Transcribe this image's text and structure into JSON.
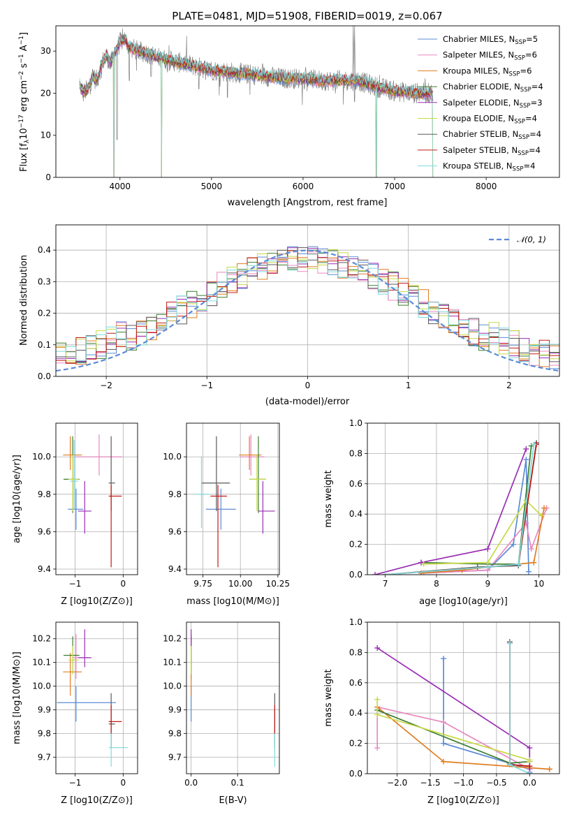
{
  "figure": {
    "title": "PLATE=0481, MJD=51908, FIBERID=0019, z=0.067"
  },
  "colors": {
    "series": [
      "#5b8bd6",
      "#e889c0",
      "#e07c1f",
      "#3c7d2f",
      "#9a2fb3",
      "#c8d948",
      "#5a5a5a",
      "#c21a15",
      "#7fd9de"
    ],
    "data": "#808080",
    "grid": "#b0b0b0",
    "gaussian": "#5b8bd6"
  },
  "chart_data": [
    {
      "id": "spectrum",
      "type": "line",
      "xlabel": "wavelength [Angstrom, rest frame]",
      "ylabel": "Flux [f_λ10^-17 erg cm^-2 s^-1 A^-1]",
      "xlim": [
        3300,
        8800
      ],
      "ylim": [
        0,
        36
      ],
      "xticks": [
        4000,
        5000,
        6000,
        7000,
        8000
      ],
      "yticks": [
        0,
        10,
        20,
        30
      ],
      "grid": false,
      "legend_position": "top-right",
      "legend": [
        "Chabrier MILES, N_SSP=5",
        "Salpeter MILES, N_SSP=6",
        "Kroupa MILES, N_SSP=6",
        "Chabrier ELODIE, N_SSP=4",
        "Salpeter ELODIE, N_SSP=3",
        "Kroupa ELODIE, N_SSP=4",
        "Chabrier STELIB, N_SSP=4",
        "Salpeter STELIB, N_SSP=4",
        "Kroupa STELIB, N_SSP=4"
      ],
      "model_x": [
        3560,
        3600,
        3650,
        3700,
        3750,
        3800,
        3850,
        3900,
        3950,
        4000,
        4050,
        4100,
        4200,
        4300,
        4400,
        4500,
        4600,
        4800,
        5000,
        5200,
        5400,
        5600,
        5800,
        6000,
        6200,
        6400,
        6600,
        6800,
        7000,
        7200,
        7400,
        7420
      ],
      "model_y": [
        22,
        20,
        21,
        24,
        23,
        27,
        29,
        27,
        30,
        32,
        33,
        31,
        30,
        29.5,
        28.5,
        28,
        27.5,
        26.5,
        25.5,
        25,
        24.5,
        24,
        23.5,
        23.5,
        23,
        23,
        23,
        21.5,
        20.5,
        20,
        20,
        19
      ],
      "absorption_lines": [
        [
          3933,
          0
        ],
        [
          3968,
          9
        ],
        [
          4102,
          23
        ],
        [
          4340,
          24
        ],
        [
          4455,
          0
        ],
        [
          4861,
          21
        ],
        [
          5175,
          19
        ],
        [
          6563,
          18
        ],
        [
          6800,
          0
        ],
        [
          7420,
          0
        ]
      ]
    },
    {
      "id": "residuals",
      "type": "bar",
      "xlabel": "(data-model)/error",
      "ylabel": "Normed distribution",
      "xlim": [
        -2.5,
        2.5
      ],
      "ylim": [
        0,
        0.48
      ],
      "xticks": [
        -2,
        -1,
        0,
        1,
        2
      ],
      "yticks": [
        0.0,
        0.1,
        0.2,
        0.3,
        0.4
      ],
      "grid": true,
      "legend_position": "top-right",
      "legend": [
        "𝒩(0, 1)"
      ],
      "bin_width": 0.1,
      "x_start": -2.5,
      "gaussian": {
        "mean": 0,
        "sigma": 1
      }
    },
    {
      "id": "age-vs-Z",
      "type": "scatter",
      "xlabel": "Z [log10(Z/Z⊙)]",
      "ylabel": "age  [log10(age/yr)]",
      "xlim": [
        -1.4,
        0.3
      ],
      "ylim": [
        9.37,
        10.18
      ],
      "xticks": [
        -1,
        0
      ],
      "yticks": [
        9.4,
        9.6,
        9.8,
        10.0
      ],
      "grid": true,
      "points": [
        {
          "x": -0.98,
          "xerr": [
            0.17,
            0.15
          ],
          "y": 9.72,
          "yerr": [
            0.11,
            0.11
          ]
        },
        {
          "x": -0.5,
          "xerr": [
            0.49,
            0.48
          ],
          "y": 10.0,
          "yerr": [
            0.1,
            0.12
          ]
        },
        {
          "x": -1.1,
          "xerr": [
            0.15,
            0.24
          ],
          "y": 10.01,
          "yerr": [
            0.08,
            0.1
          ]
        },
        {
          "x": -1.05,
          "xerr": [
            0.19,
            0.14
          ],
          "y": 9.88,
          "yerr": [
            0.18,
            0.23
          ]
        },
        {
          "x": -0.8,
          "xerr": [
            0.14,
            0.14
          ],
          "y": 9.71,
          "yerr": [
            0.12,
            0.16
          ]
        },
        {
          "x": -1.05,
          "xerr": [
            0.09,
            0.12
          ],
          "y": 9.88,
          "yerr": [
            0.17,
            0.13
          ]
        },
        {
          "x": -0.25,
          "xerr": [
            0.05,
            0.08
          ],
          "y": 9.86,
          "yerr": [
            0.15,
            0.25
          ]
        },
        {
          "x": -0.25,
          "xerr": [
            0.05,
            0.22
          ],
          "y": 9.79,
          "yerr": [
            0.38,
            0.06
          ]
        },
        {
          "x": -1.02,
          "xerr": [
            0.08,
            0.08
          ],
          "y": 9.87,
          "yerr": [
            0.15,
            0.22
          ]
        }
      ]
    },
    {
      "id": "age-vs-mass",
      "type": "scatter",
      "xlabel": "mass [log10(M/M⊙)]",
      "ylabel": "",
      "xlim": [
        9.64,
        10.26
      ],
      "ylim": [
        9.37,
        10.18
      ],
      "xticks": [
        9.75,
        10.0,
        10.25
      ],
      "yticks": [
        9.4,
        9.6,
        9.8,
        10.0
      ],
      "grid": true,
      "points": [
        {
          "x": 9.87,
          "xerr": [
            0.1,
            0.1
          ],
          "y": 9.72,
          "yerr": [
            0.11,
            0.11
          ]
        },
        {
          "x": 10.07,
          "xerr": [
            0.07,
            0.09
          ],
          "y": 10.0,
          "yerr": [
            0.1,
            0.12
          ]
        },
        {
          "x": 10.06,
          "xerr": [
            0.07,
            0.08
          ],
          "y": 10.01,
          "yerr": [
            0.08,
            0.1
          ]
        },
        {
          "x": 10.12,
          "xerr": [
            0.06,
            0.05
          ],
          "y": 9.88,
          "yerr": [
            0.18,
            0.23
          ]
        },
        {
          "x": 10.15,
          "xerr": [
            0.03,
            0.08
          ],
          "y": 9.71,
          "yerr": [
            0.12,
            0.16
          ]
        },
        {
          "x": 10.11,
          "xerr": [
            0.05,
            0.06
          ],
          "y": 9.88,
          "yerr": [
            0.17,
            0.13
          ]
        },
        {
          "x": 9.84,
          "xerr": [
            0.1,
            0.09
          ],
          "y": 9.86,
          "yerr": [
            0.15,
            0.25
          ]
        },
        {
          "x": 9.85,
          "xerr": [
            0.05,
            0.06
          ],
          "y": 9.79,
          "yerr": [
            0.38,
            0.06
          ]
        },
        {
          "x": 9.74,
          "xerr": [
            0.04,
            0.05
          ],
          "y": 9.8,
          "yerr": [
            0.18,
            0.2
          ]
        }
      ]
    },
    {
      "id": "weight-vs-age",
      "type": "line",
      "xlabel": "age  [log10(age/yr)]",
      "ylabel": "mass weight",
      "xlim": [
        6.65,
        10.4
      ],
      "ylim": [
        0,
        1.0
      ],
      "xticks": [
        7,
        8,
        9,
        10
      ],
      "yticks": [
        0.0,
        0.2,
        0.4,
        0.6,
        0.8,
        1.0
      ],
      "grid": true,
      "series": [
        {
          "x": [
            7.7,
            9.0,
            9.5,
            9.75,
            9.8
          ],
          "y": [
            0.01,
            0.03,
            0.2,
            0.76,
            0.02
          ]
        },
        {
          "x": [
            7.75,
            9.0,
            9.75,
            9.85,
            10.15
          ],
          "y": [
            0.01,
            0.03,
            0.34,
            0.17,
            0.44
          ]
        },
        {
          "x": [
            7.7,
            8.5,
            9.0,
            9.9,
            10.1
          ],
          "y": [
            0.01,
            0.03,
            0.05,
            0.08,
            0.44
          ]
        },
        {
          "x": [
            7.7,
            9.0,
            9.6,
            9.85
          ],
          "y": [
            0.08,
            0.07,
            0.07,
            0.85
          ]
        },
        {
          "x": [
            6.8,
            7.7,
            9.0,
            9.75
          ],
          "y": [
            0.0,
            0.08,
            0.17,
            0.83
          ]
        },
        {
          "x": [
            7.75,
            9.0,
            9.75,
            10.05
          ],
          "y": [
            0.07,
            0.08,
            0.49,
            0.39
          ]
        },
        {
          "x": [
            7.0,
            8.8,
            9.6,
            9.95
          ],
          "y": [
            0.0,
            0.05,
            0.06,
            0.87
          ]
        },
        {
          "x": [
            7.0,
            9.0,
            9.6,
            9.95
          ],
          "y": [
            0.0,
            0.05,
            0.07,
            0.86
          ]
        },
        {
          "x": [
            7.0,
            9.0,
            9.6,
            9.9
          ],
          "y": [
            0.0,
            0.05,
            0.07,
            0.86
          ]
        }
      ]
    },
    {
      "id": "mass-vs-Z",
      "type": "scatter",
      "xlabel": "Z [log10(Z/Z⊙)]",
      "ylabel": "mass [log10(M/M⊙)]",
      "xlim": [
        -1.4,
        0.3
      ],
      "ylim": [
        9.63,
        10.27
      ],
      "xticks": [
        -1,
        0
      ],
      "yticks": [
        9.7,
        9.8,
        9.9,
        10.0,
        10.1,
        10.2
      ],
      "grid": true,
      "points": [
        {
          "x": -0.98,
          "xerr": [
            0.4,
            0.83
          ],
          "y": 9.93,
          "yerr": [
            0.08,
            0.07
          ]
        },
        {
          "x": -0.98,
          "xerr": [
            0.07,
            0.25
          ],
          "y": 10.12,
          "yerr": [
            0.09,
            0.1
          ]
        },
        {
          "x": -1.1,
          "xerr": [
            0.15,
            0.24
          ],
          "y": 10.06,
          "yerr": [
            0.1,
            0.08
          ]
        },
        {
          "x": -1.05,
          "xerr": [
            0.19,
            0.14
          ],
          "y": 10.13,
          "yerr": [
            0.08,
            0.08
          ]
        },
        {
          "x": -0.8,
          "xerr": [
            0.14,
            0.14
          ],
          "y": 10.12,
          "yerr": [
            0.04,
            0.12
          ]
        },
        {
          "x": -1.05,
          "xerr": [
            0.09,
            0.12
          ],
          "y": 10.11,
          "yerr": [
            0.06,
            0.06
          ]
        },
        {
          "x": -0.25,
          "xerr": [
            0.05,
            0.08
          ],
          "y": 9.84,
          "yerr": [
            0.1,
            0.13
          ]
        },
        {
          "x": -0.25,
          "xerr": [
            0.05,
            0.22
          ],
          "y": 9.85,
          "yerr": [
            0.05,
            0.07
          ]
        },
        {
          "x": -0.25,
          "xerr": [
            0.05,
            0.35
          ],
          "y": 9.74,
          "yerr": [
            0.08,
            0.06
          ]
        }
      ]
    },
    {
      "id": "mass-vs-ebv",
      "type": "scatter",
      "xlabel": "E(B-V)",
      "ylabel": "",
      "xlim": [
        -0.01,
        0.19
      ],
      "ylim": [
        9.63,
        10.27
      ],
      "xticks": [
        0.0,
        0.1
      ],
      "yticks": [
        9.7,
        9.8,
        9.9,
        10.0,
        10.1,
        10.2
      ],
      "grid": true,
      "points": [
        {
          "x": 0.0,
          "xerr": [
            0,
            0
          ],
          "y": 9.93,
          "yerr": [
            0.08,
            0.07
          ]
        },
        {
          "x": 0.0,
          "xerr": [
            0,
            0
          ],
          "y": 10.12,
          "yerr": [
            0.09,
            0.1
          ]
        },
        {
          "x": 0.0,
          "xerr": [
            0,
            0
          ],
          "y": 10.06,
          "yerr": [
            0.1,
            0.08
          ]
        },
        {
          "x": 0.0,
          "xerr": [
            0,
            0
          ],
          "y": 10.13,
          "yerr": [
            0.08,
            0.08
          ]
        },
        {
          "x": 0.0,
          "xerr": [
            0,
            0
          ],
          "y": 10.12,
          "yerr": [
            0.04,
            0.12
          ]
        },
        {
          "x": 0.0,
          "xerr": [
            0,
            0
          ],
          "y": 10.11,
          "yerr": [
            0.06,
            0.06
          ]
        },
        {
          "x": 0.18,
          "xerr": [
            0,
            0
          ],
          "y": 9.84,
          "yerr": [
            0.1,
            0.13
          ]
        },
        {
          "x": 0.18,
          "xerr": [
            0,
            0
          ],
          "y": 9.85,
          "yerr": [
            0.05,
            0.07
          ]
        },
        {
          "x": 0.18,
          "xerr": [
            0,
            0
          ],
          "y": 9.74,
          "yerr": [
            0.08,
            0.06
          ]
        }
      ]
    },
    {
      "id": "weight-vs-Z",
      "type": "line",
      "xlabel": "Z [log10(Z/Z⊙)]",
      "ylabel": "mass weight",
      "xlim": [
        -2.45,
        0.45
      ],
      "ylim": [
        0,
        1.0
      ],
      "xticks": [
        -2.0,
        -1.5,
        -1.0,
        -0.5,
        0.0
      ],
      "yticks": [
        0.0,
        0.2,
        0.4,
        0.6,
        0.8,
        1.0
      ],
      "grid": true,
      "series": [
        {
          "x": [
            -1.3,
            -1.3,
            0.0,
            0.0
          ],
          "y": [
            0.76,
            0.2,
            0.03,
            0.01
          ]
        },
        {
          "x": [
            -2.3,
            -2.3,
            -1.3,
            0.0
          ],
          "y": [
            0.17,
            0.44,
            0.34,
            0.03
          ]
        },
        {
          "x": [
            -2.3,
            -1.3,
            0.3,
            0.3
          ],
          "y": [
            0.44,
            0.08,
            0.03,
            0.03
          ]
        },
        {
          "x": [
            -2.3,
            -0.3,
            0.0
          ],
          "y": [
            0.42,
            0.07,
            0.08
          ]
        },
        {
          "x": [
            -2.3,
            0.0,
            0.0
          ],
          "y": [
            0.83,
            0.17,
            0.0
          ]
        },
        {
          "x": [
            -2.3,
            -2.3,
            0.0,
            0.0
          ],
          "y": [
            0.49,
            0.39,
            0.09,
            0.08
          ]
        },
        {
          "x": [
            -0.3,
            -0.3,
            0.0
          ],
          "y": [
            0.87,
            0.06,
            0.05
          ]
        },
        {
          "x": [
            -0.3,
            -0.3,
            0.0
          ],
          "y": [
            0.86,
            0.06,
            0.05
          ]
        },
        {
          "x": [
            -0.3,
            -0.3,
            0.0
          ],
          "y": [
            0.86,
            0.06,
            0.0
          ]
        }
      ]
    }
  ]
}
